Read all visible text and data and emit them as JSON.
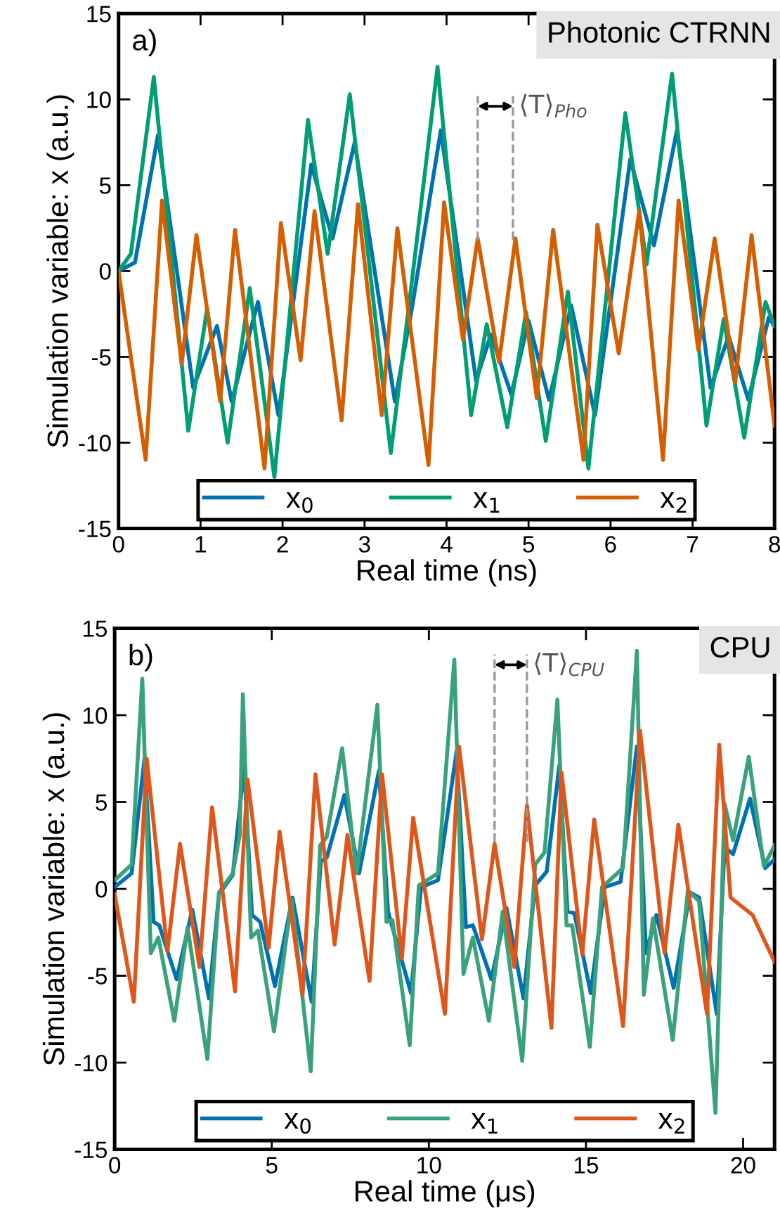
{
  "chart_data": [
    {
      "type": "line",
      "xlabel": "Real time (ns)",
      "ylabel": "Simulation variable: x (a.u.)",
      "xlim": [
        0,
        8
      ],
      "xticks": [
        0,
        1,
        2,
        3,
        4,
        5,
        6,
        7,
        8
      ],
      "ylim": [
        -15,
        15
      ],
      "yticks": [
        -15,
        -10,
        -5,
        0,
        5,
        10,
        15
      ],
      "grid": false,
      "legend": "bottom",
      "line_style": "solid",
      "annotations": [
        "a)",
        "Photonic CTRNN"
      ],
      "ref_lines": [
        {
          "axis": "x",
          "value": 4.38,
          "color": "#999999",
          "line_style": "dashed"
        },
        {
          "axis": "x",
          "value": 4.81,
          "label": "⟨T⟩$_{Pho}$",
          "color": "#999999",
          "line_style": "dashed"
        }
      ],
      "series": [
        {
          "name": "x$_{0}$",
          "color": "#0072b2",
          "x": [
            0,
            0.2,
            0.48,
            0.91,
            1.2,
            1.38,
            1.7,
            1.95,
            2.35,
            2.61,
            2.88,
            3.37,
            3.58,
            3.93,
            4.36,
            4.54,
            4.79,
            5.0,
            5.25,
            5.52,
            5.81,
            6.24,
            6.53,
            6.81,
            7.22,
            7.44,
            7.68,
            7.93,
            8.0
          ],
          "values": [
            0,
            0.5,
            7.9,
            -6.8,
            -3.2,
            -7.6,
            -1.8,
            -8.4,
            6.2,
            1.9,
            7.5,
            -7.6,
            -2.1,
            8.2,
            -6.4,
            -3.7,
            -7.2,
            -2.9,
            -7.5,
            -2.0,
            -8.4,
            6.5,
            1.5,
            8.2,
            -6.8,
            -3.8,
            -7.5,
            -2.7,
            -3.2
          ]
        },
        {
          "name": "x$_{1}$",
          "color": "#009e73",
          "x": [
            0,
            0.15,
            0.43,
            0.85,
            1.08,
            1.33,
            1.6,
            1.9,
            2.31,
            2.55,
            2.82,
            3.32,
            3.58,
            3.89,
            4.3,
            4.49,
            4.74,
            4.97,
            5.21,
            5.48,
            5.73,
            6.18,
            6.44,
            6.75,
            7.17,
            7.38,
            7.63,
            7.89,
            8.0
          ],
          "values": [
            0,
            1.0,
            11.3,
            -9.3,
            -2.2,
            -10.0,
            -1.0,
            -12.0,
            8.8,
            1.0,
            10.3,
            -10.6,
            -0.5,
            11.9,
            -8.4,
            -3.1,
            -9.1,
            -2.4,
            -9.9,
            -1.2,
            -11.5,
            9.2,
            0.4,
            11.5,
            -9.0,
            -2.8,
            -9.7,
            -1.8,
            -3.2
          ]
        },
        {
          "name": "x$_{2}$",
          "color": "#d55e00",
          "x": [
            0,
            0.33,
            0.53,
            0.77,
            0.95,
            1.24,
            1.42,
            1.78,
            1.98,
            2.22,
            2.39,
            2.72,
            2.92,
            3.21,
            3.4,
            3.78,
            3.97,
            4.2,
            4.38,
            4.64,
            4.84,
            5.1,
            5.3,
            5.67,
            5.84,
            6.1,
            6.35,
            6.64,
            6.83,
            7.07,
            7.27,
            7.52,
            7.72,
            8.0
          ],
          "values": [
            0,
            -11.0,
            4.1,
            -5.4,
            2.1,
            -7.6,
            2.4,
            -11.5,
            2.8,
            -5.2,
            3.5,
            -8.7,
            3.9,
            -8.4,
            2.5,
            -11.3,
            4.0,
            -4.0,
            1.9,
            -5.3,
            1.9,
            -7.4,
            2.4,
            -11.0,
            2.7,
            -4.8,
            3.5,
            -11.0,
            4.1,
            -4.6,
            1.9,
            -6.5,
            2.1,
            -9.0
          ]
        }
      ]
    },
    {
      "type": "line",
      "xlabel": "Real time (μs)",
      "ylabel": "Simulation variable: x (a.u.)",
      "xlim": [
        0,
        21
      ],
      "xticks": [
        0,
        5,
        10,
        15,
        20
      ],
      "ylim": [
        -15,
        15
      ],
      "yticks": [
        -15,
        -10,
        -5,
        0,
        5,
        10,
        15
      ],
      "grid": false,
      "legend": "bottom",
      "line_style": "solid",
      "annotations": [
        "b)",
        "CPU"
      ],
      "ref_lines": [
        {
          "axis": "x",
          "value": 12.09,
          "color": "#999999",
          "line_style": "dashed"
        },
        {
          "axis": "x",
          "value": 13.12,
          "label": "⟨T⟩$_{CPU}$",
          "color": "#999999",
          "line_style": "dashed"
        }
      ],
      "series": [
        {
          "name": "x$_{0}$",
          "color": "#0072b2",
          "x": [
            0,
            0.54,
            0.95,
            1.24,
            1.42,
            1.97,
            2.47,
            3.0,
            3.32,
            3.76,
            4.12,
            4.37,
            4.63,
            5.1,
            5.66,
            6.27,
            6.56,
            6.75,
            7.31,
            7.78,
            8.41,
            8.7,
            9.43,
            9.75,
            10.29,
            10.88,
            11.18,
            11.4,
            11.99,
            12.47,
            13.01,
            13.38,
            13.75,
            14.15,
            14.41,
            14.63,
            15.15,
            15.59,
            16.1,
            16.62,
            16.91,
            17.24,
            17.79,
            18.31,
            18.6,
            19.16,
            19.41,
            19.68,
            20.22,
            20.7,
            21.0
          ],
          "values": [
            0.1,
            0.9,
            7.5,
            -1.9,
            -2.1,
            -5.2,
            -1.2,
            -6.3,
            -0.3,
            0.8,
            7.1,
            -1.5,
            -1.9,
            -5.6,
            -0.5,
            -6.5,
            1.6,
            1.8,
            5.4,
            0.9,
            6.8,
            -1.3,
            -6.0,
            0.1,
            0.5,
            7.9,
            -2.2,
            -2.1,
            -5.2,
            -1.1,
            -6.3,
            0.2,
            1.0,
            7.1,
            -1.3,
            -1.4,
            -6.0,
            0.1,
            0.4,
            8.2,
            -3.7,
            -1.5,
            -5.7,
            -0.2,
            -0.5,
            -7.2,
            2.4,
            2.0,
            5.2,
            1.2,
            1.7
          ]
        },
        {
          "name": "x$_{1}$",
          "color": "#3aa27a",
          "x": [
            0,
            0.54,
            0.88,
            1.15,
            1.39,
            1.9,
            2.32,
            2.95,
            3.32,
            3.76,
            3.98,
            4.08,
            4.34,
            4.56,
            5.07,
            5.63,
            6.24,
            6.54,
            6.75,
            7.24,
            7.7,
            8.36,
            8.65,
            8.84,
            9.39,
            9.68,
            10.29,
            10.81,
            11.1,
            11.4,
            11.91,
            12.35,
            12.97,
            13.38,
            13.68,
            14.09,
            14.38,
            14.56,
            15.12,
            15.51,
            16.18,
            16.62,
            16.84,
            17.13,
            17.76,
            18.24,
            18.6,
            19.12,
            19.41,
            19.68,
            20.18,
            20.66,
            21.0
          ],
          "values": [
            0.5,
            1.4,
            12.1,
            -3.7,
            -2.8,
            -7.6,
            -2.2,
            -9.8,
            -0.2,
            0.9,
            3.1,
            11.2,
            -2.8,
            -2.4,
            -8.2,
            -0.6,
            -10.5,
            2.5,
            3.0,
            8.1,
            0.9,
            10.6,
            -1.9,
            -1.8,
            -9.0,
            0.2,
            0.9,
            13.2,
            -4.9,
            -2.8,
            -7.6,
            -1.3,
            -9.9,
            1.4,
            2.1,
            10.9,
            -2.1,
            -2.1,
            -9.1,
            0.1,
            1.2,
            13.7,
            -6.1,
            -1.7,
            -8.7,
            -0.1,
            -0.7,
            -12.9,
            4.9,
            2.8,
            7.6,
            1.3,
            2.5
          ]
        },
        {
          "name": "x$_{2}$",
          "color": "#e0561a",
          "x": [
            0,
            0.61,
            1.02,
            1.68,
            2.08,
            2.7,
            3.1,
            3.83,
            4.23,
            4.9,
            5.25,
            5.98,
            6.39,
            7.0,
            7.41,
            8.11,
            8.51,
            9.14,
            9.5,
            10.51,
            10.96,
            11.69,
            12.09,
            12.72,
            13.12,
            13.9,
            14.22,
            14.88,
            15.26,
            16.18,
            16.72,
            17.5,
            17.94,
            18.85,
            19.24,
            19.6,
            20.3,
            21.0
          ],
          "values": [
            -0.3,
            -6.5,
            7.5,
            -3.6,
            2.6,
            -4.5,
            4.7,
            -5.9,
            6.3,
            -3.4,
            3.3,
            -6.1,
            6.6,
            -3.2,
            3.1,
            -5.3,
            6.6,
            -4.0,
            4.1,
            -7.2,
            8.2,
            -2.9,
            2.6,
            -4.5,
            4.8,
            -8.0,
            6.7,
            -3.8,
            4.0,
            -7.9,
            9.1,
            -3.7,
            3.7,
            -7.2,
            8.3,
            -0.5,
            -1.5,
            -4.2
          ]
        }
      ]
    }
  ]
}
